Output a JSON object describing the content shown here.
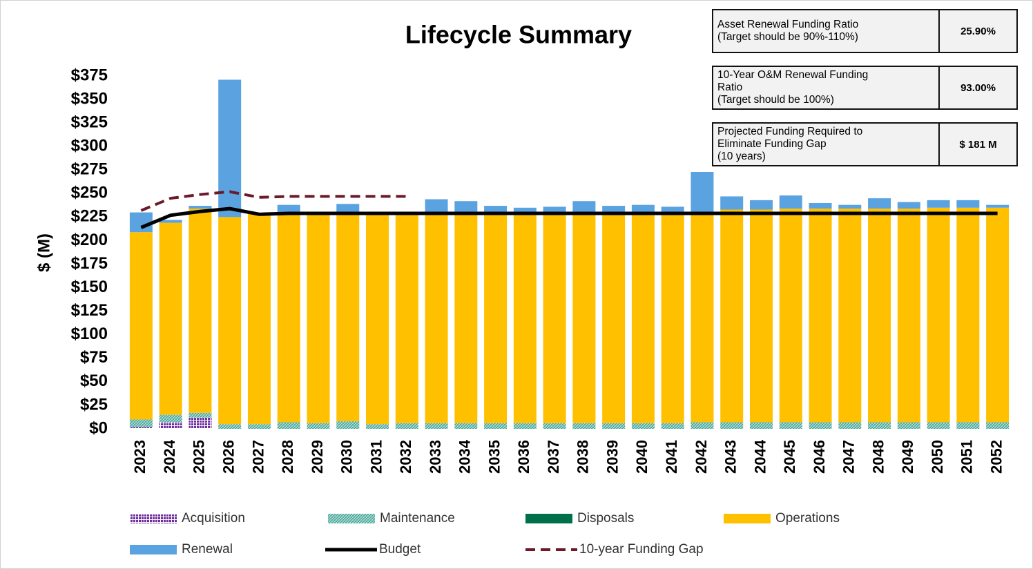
{
  "chart_data": {
    "type": "bar",
    "title": "Lifecycle Summary",
    "y_label": "$ (M)",
    "categories": [
      "2023",
      "2024",
      "2025",
      "2026",
      "2027",
      "2028",
      "2029",
      "2030",
      "2031",
      "2032",
      "2033",
      "2034",
      "2035",
      "2036",
      "2037",
      "2038",
      "2039",
      "2040",
      "2041",
      "2042",
      "2043",
      "2044",
      "2045",
      "2046",
      "2047",
      "2048",
      "2049",
      "2050",
      "2051",
      "2052"
    ],
    "ylim": [
      0,
      375
    ],
    "yticks": [
      {
        "value": 0,
        "label": "$0"
      },
      {
        "value": 25,
        "label": "$25"
      },
      {
        "value": 50,
        "label": "$50"
      },
      {
        "value": 75,
        "label": "$75"
      },
      {
        "value": 100,
        "label": "$100"
      },
      {
        "value": 125,
        "label": "$125"
      },
      {
        "value": 150,
        "label": "$150"
      },
      {
        "value": 175,
        "label": "$175"
      },
      {
        "value": 200,
        "label": "$200"
      },
      {
        "value": 225,
        "label": "$225"
      },
      {
        "value": 250,
        "label": "$250"
      },
      {
        "value": 275,
        "label": "$275"
      },
      {
        "value": 300,
        "label": "$300"
      },
      {
        "value": 325,
        "label": "$325"
      },
      {
        "value": 350,
        "label": "$350"
      },
      {
        "value": 375,
        "label": "$375"
      }
    ],
    "grid": false,
    "series": [
      {
        "name": "Acquisition",
        "color": "#7030a0",
        "pattern": "dots",
        "values": [
          2,
          7,
          12,
          0,
          0,
          0,
          0,
          0,
          0,
          0,
          0,
          0,
          0,
          0,
          0,
          0,
          0,
          0,
          0,
          0,
          0,
          0,
          0,
          0,
          0,
          0,
          0,
          0,
          0,
          0
        ]
      },
      {
        "name": "Maintenance",
        "color": "#4ba89c",
        "pattern": "hatch",
        "values": [
          8,
          8,
          5,
          5,
          5,
          7,
          6,
          8,
          5,
          6,
          6,
          6,
          6,
          6,
          6,
          6,
          6,
          6,
          6,
          7,
          7,
          7,
          7,
          7,
          7,
          7,
          7,
          7,
          7,
          7
        ]
      },
      {
        "name": "Disposals",
        "color": "#00704a",
        "values": [
          0,
          0,
          0,
          0,
          0,
          0,
          0,
          0,
          0,
          0,
          0,
          0,
          0,
          0,
          0,
          0,
          0,
          0,
          0,
          0,
          0,
          0,
          0,
          0,
          0,
          0,
          0,
          0,
          0,
          0
        ]
      },
      {
        "name": "Operations",
        "color": "#ffc000",
        "values": [
          199,
          204,
          217,
          220,
          224,
          223,
          224,
          222,
          225,
          224,
          224,
          224,
          224,
          224,
          224,
          224,
          224,
          224,
          224,
          223,
          226,
          226,
          227,
          227,
          227,
          227,
          227,
          228,
          228,
          228
        ]
      },
      {
        "name": "Renewal",
        "color": "#5ba3e0",
        "values": [
          21,
          3,
          3,
          146,
          0,
          8,
          0,
          9,
          0,
          0,
          14,
          12,
          7,
          5,
          6,
          12,
          7,
          8,
          6,
          43,
          14,
          10,
          14,
          6,
          4,
          11,
          7,
          8,
          8,
          3
        ]
      },
      {
        "name": "Budget",
        "color": "#000000",
        "type": "line",
        "values": [
          214,
          227,
          231,
          234,
          228,
          229,
          229,
          229,
          229,
          229,
          229,
          229,
          229,
          229,
          229,
          229,
          229,
          229,
          229,
          229,
          229,
          229,
          229,
          229,
          229,
          229,
          229,
          229,
          229,
          229
        ]
      },
      {
        "name": "10-year Funding Gap",
        "color": "#6b1a2a",
        "type": "line",
        "dash": true,
        "values": [
          232,
          245,
          249,
          252,
          246,
          247,
          247,
          247,
          247,
          247,
          null,
          null,
          null,
          null,
          null,
          null,
          null,
          null,
          null,
          null,
          null,
          null,
          null,
          null,
          null,
          null,
          null,
          null,
          null,
          null
        ]
      }
    ],
    "info_boxes": [
      {
        "label": "Asset Renewal Funding Ratio\n(Target should be 90%-110%)",
        "value": "25.90%"
      },
      {
        "label": "10-Year O&M Renewal Funding\nRatio\n(Target should be 100%)",
        "value": "93.00%"
      },
      {
        "label": "Projected Funding Required to\nEliminate Funding Gap\n(10 years)",
        "value": "$ 181 M"
      }
    ]
  }
}
